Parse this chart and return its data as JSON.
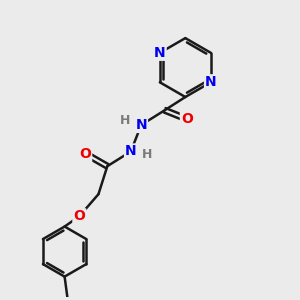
{
  "bg_color": "#ebebeb",
  "bond_color": "#1a1a1a",
  "N_color": "#0000ee",
  "O_color": "#ee0000",
  "H_color": "#7a7a7a",
  "bond_width": 1.8,
  "font_size_atom": 10,
  "fig_width": 3.0,
  "fig_height": 3.0,
  "dpi": 100,
  "xlim": [
    0,
    10
  ],
  "ylim": [
    0,
    10
  ]
}
